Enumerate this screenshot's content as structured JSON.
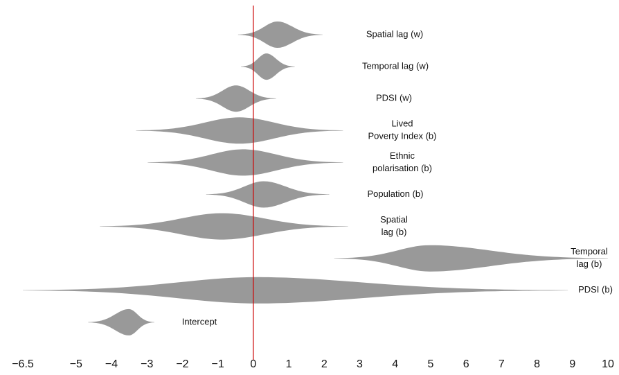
{
  "chart_data": {
    "type": "violin",
    "categories": [
      [
        "Spatial lag (w)"
      ],
      [
        "Temporal lag (w)"
      ],
      [
        "PDSI (w)"
      ],
      [
        "Lived",
        "Poverty Index (b)"
      ],
      [
        "Ethnic",
        "polarisation (b)"
      ],
      [
        "Population (b)"
      ],
      [
        "Spatial",
        "lag (b)"
      ],
      [
        "Temporal",
        "lag (b)"
      ],
      [
        "PDSI (b)"
      ],
      [
        "Intercept"
      ]
    ],
    "min": [
      -0.43,
      -0.35,
      -1.62,
      -3.31,
      -2.98,
      -1.33,
      -4.33,
      2.28,
      -6.5,
      -4.66
    ],
    "mode": [
      0.68,
      0.37,
      -0.49,
      -0.39,
      -0.29,
      0.29,
      -0.88,
      4.97,
      0.1,
      -3.51
    ],
    "max": [
      1.95,
      1.17,
      0.64,
      2.53,
      2.53,
      2.14,
      2.67,
      10,
      8.87,
      -2.79
    ],
    "color": "#999999",
    "reference_line": 0,
    "reference_color": "#cc0000",
    "xlim": [
      -6.5,
      10
    ],
    "xticks": [
      {
        "value": -6.5,
        "label": "−6.5"
      },
      {
        "value": -5,
        "label": "−5"
      },
      {
        "value": -4,
        "label": "−4"
      },
      {
        "value": -3,
        "label": "−3"
      },
      {
        "value": -2,
        "label": "−2"
      },
      {
        "value": -1,
        "label": "−1"
      },
      0,
      1,
      2,
      3,
      4,
      5,
      6,
      7,
      8,
      9,
      10
    ],
    "grid": false
  }
}
